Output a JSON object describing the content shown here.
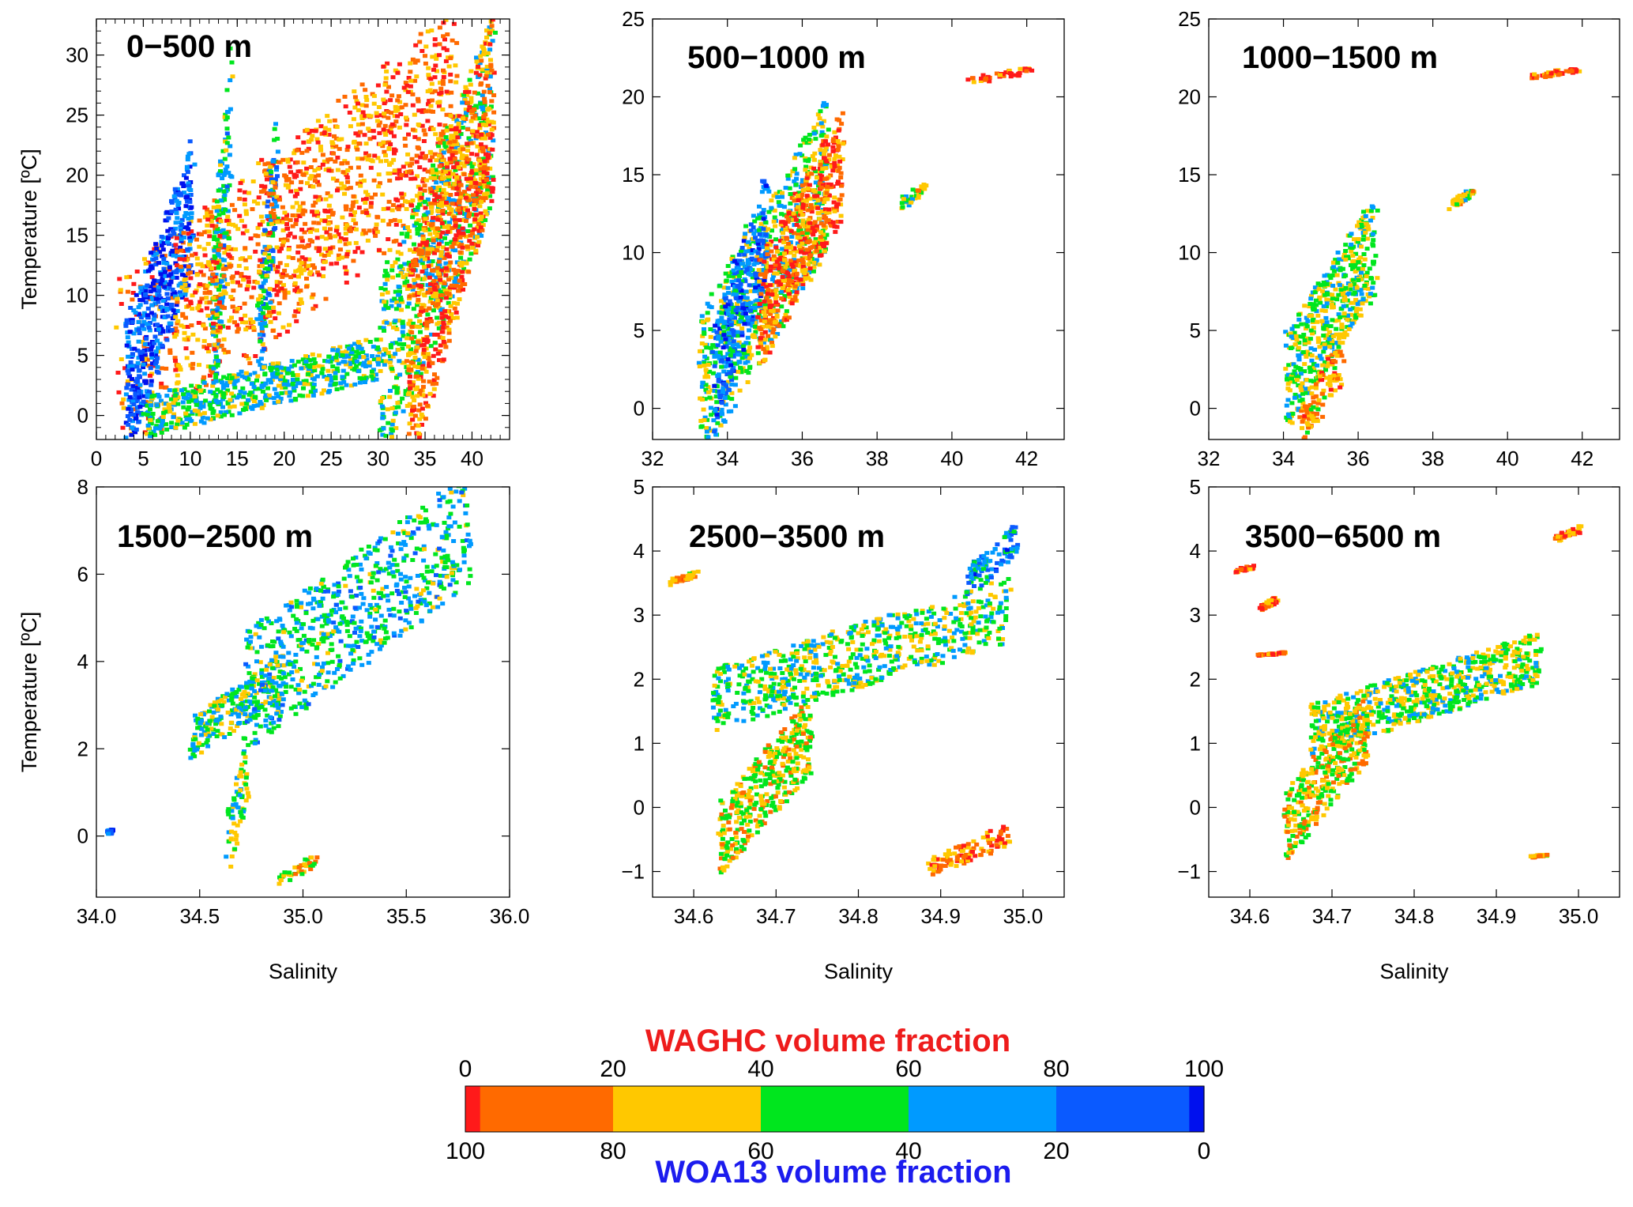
{
  "chart_data": [
    {
      "type": "scatter",
      "title": "0−500 m",
      "xlabel": "",
      "ylabel": "Temperature [ºC]",
      "xlim": [
        0,
        44
      ],
      "ylim": [
        -2,
        33
      ],
      "xticks": [
        0,
        5,
        10,
        15,
        20,
        25,
        30,
        35,
        40
      ],
      "yticks": [
        0,
        5,
        10,
        15,
        20,
        25,
        30
      ],
      "xticklabels": [
        "0",
        "5",
        "10",
        "15",
        "20",
        "25",
        "30",
        "35",
        "40"
      ],
      "yticklabels": [
        "0",
        "5",
        "10",
        "15",
        "20",
        "25",
        "30"
      ],
      "clusters": [
        {
          "x": [
            2,
            38
          ],
          "y": [
            -1,
            31
          ],
          "fraction": 10
        },
        {
          "x": [
            3,
            10
          ],
          "y": [
            -1,
            21
          ],
          "fraction": 90
        },
        {
          "x": [
            30,
            42
          ],
          "y": [
            -1,
            30
          ],
          "fraction": 50
        },
        {
          "x": [
            33,
            42
          ],
          "y": [
            -1,
            31
          ],
          "fraction": 10
        },
        {
          "x": [
            12,
            14
          ],
          "y": [
            0,
            28
          ],
          "fraction": 60
        },
        {
          "x": [
            17,
            19
          ],
          "y": [
            4,
            24
          ],
          "fraction": 70
        },
        {
          "x": [
            5,
            30
          ],
          "y": [
            -1,
            6
          ],
          "fraction": 55
        },
        {
          "x": [
            8,
            38
          ],
          "y": [
            5,
            30
          ],
          "fraction": 15
        }
      ]
    },
    {
      "type": "scatter",
      "title": "500−1000 m",
      "xlabel": "",
      "ylabel": "",
      "xlim": [
        32,
        43
      ],
      "ylim": [
        -2,
        25
      ],
      "xticks": [
        32,
        34,
        36,
        38,
        40,
        42
      ],
      "yticks": [
        0,
        5,
        10,
        15,
        20,
        25
      ],
      "xticklabels": [
        "32",
        "34",
        "36",
        "38",
        "40",
        "42"
      ],
      "yticklabels": [
        "0",
        "5",
        "10",
        "15",
        "20",
        "25"
      ],
      "clusters": [
        {
          "x": [
            33.2,
            36.6
          ],
          "y": [
            -1.5,
            18
          ],
          "fraction": 50
        },
        {
          "x": [
            33.6,
            35.0
          ],
          "y": [
            0,
            14
          ],
          "fraction": 80
        },
        {
          "x": [
            34.8,
            37.0
          ],
          "y": [
            4,
            18
          ],
          "fraction": 10
        },
        {
          "x": [
            38.6,
            39.2
          ],
          "y": [
            13,
            14.5
          ],
          "fraction": 40
        },
        {
          "x": [
            40.4,
            42.2
          ],
          "y": [
            21,
            22
          ],
          "fraction": 5
        }
      ]
    },
    {
      "type": "scatter",
      "title": "1000−1500 m",
      "xlabel": "",
      "ylabel": "",
      "xlim": [
        32,
        43
      ],
      "ylim": [
        -2,
        25
      ],
      "xticks": [
        32,
        34,
        36,
        38,
        40,
        42
      ],
      "yticks": [
        0,
        5,
        10,
        15,
        20,
        25
      ],
      "xticklabels": [
        "32",
        "34",
        "36",
        "38",
        "40",
        "42"
      ],
      "yticklabels": [
        "0",
        "5",
        "10",
        "15",
        "20",
        "25"
      ],
      "clusters": [
        {
          "x": [
            34.0,
            36.4
          ],
          "y": [
            0,
            12.5
          ],
          "fraction": 45
        },
        {
          "x": [
            34.4,
            35.5
          ],
          "y": [
            -1.8,
            4
          ],
          "fraction": 20
        },
        {
          "x": [
            38.4,
            39.0
          ],
          "y": [
            13,
            14.2
          ],
          "fraction": 40
        },
        {
          "x": [
            40.6,
            41.8
          ],
          "y": [
            21.3,
            22
          ],
          "fraction": 5
        }
      ]
    },
    {
      "type": "scatter",
      "title": "1500−2500 m",
      "xlabel": "Salinity",
      "ylabel": "Temperature [ºC]",
      "xlim": [
        34.0,
        36.0
      ],
      "ylim": [
        -1.4,
        8
      ],
      "xticks": [
        34.0,
        34.5,
        35.0,
        35.5,
        36.0
      ],
      "yticks": [
        0,
        2,
        4,
        6,
        8
      ],
      "xticklabels": [
        "34.0",
        "34.5",
        "35.0",
        "35.5",
        "36.0"
      ],
      "yticklabels": [
        "0",
        "2",
        "4",
        "6",
        "8"
      ],
      "clusters": [
        {
          "x": [
            34.45,
            34.9
          ],
          "y": [
            2.0,
            4.0
          ],
          "fraction": 55
        },
        {
          "x": [
            34.7,
            35.8
          ],
          "y": [
            2.5,
            7.9
          ],
          "fraction": 60
        },
        {
          "x": [
            34.62,
            34.72
          ],
          "y": [
            -0.6,
            2.0
          ],
          "fraction": 45
        },
        {
          "x": [
            34.88,
            35.05
          ],
          "y": [
            -1.0,
            -0.4
          ],
          "fraction": 30
        },
        {
          "x": [
            34.05,
            34.06
          ],
          "y": [
            0.1,
            0.2
          ],
          "fraction": 90
        }
      ]
    },
    {
      "type": "scatter",
      "title": "2500−3500 m",
      "xlabel": "Salinity",
      "ylabel": "",
      "xlim": [
        34.55,
        35.05
      ],
      "ylim": [
        -1.4,
        5
      ],
      "xticks": [
        34.6,
        34.7,
        34.8,
        34.9,
        35.0
      ],
      "yticks": [
        -1,
        0,
        1,
        2,
        3,
        4,
        5
      ],
      "xticklabels": [
        "34.6",
        "34.7",
        "34.8",
        "34.9",
        "35.0"
      ],
      "yticklabels": [
        "−1",
        "0",
        "1",
        "2",
        "3",
        "4",
        "5"
      ],
      "clusters": [
        {
          "x": [
            34.62,
            34.98
          ],
          "y": [
            1.4,
            3.4
          ],
          "fraction": 50
        },
        {
          "x": [
            34.63,
            34.74
          ],
          "y": [
            -0.8,
            1.5
          ],
          "fraction": 35
        },
        {
          "x": [
            34.93,
            34.99
          ],
          "y": [
            3.4,
            4.4
          ],
          "fraction": 75
        },
        {
          "x": [
            34.88,
            34.98
          ],
          "y": [
            -1.0,
            -0.3
          ],
          "fraction": 15
        },
        {
          "x": [
            34.57,
            34.6
          ],
          "y": [
            3.5,
            3.7
          ],
          "fraction": 20
        }
      ]
    },
    {
      "type": "scatter",
      "title": "3500−6500 m",
      "xlabel": "Salinity",
      "ylabel": "",
      "xlim": [
        34.55,
        35.05
      ],
      "ylim": [
        -1.4,
        5
      ],
      "xticks": [
        34.6,
        34.7,
        34.8,
        34.9,
        35.0
      ],
      "yticks": [
        -1,
        0,
        1,
        2,
        3,
        4,
        5
      ],
      "xticklabels": [
        "34.6",
        "34.7",
        "34.8",
        "34.9",
        "35.0"
      ],
      "yticklabels": [
        "−1",
        "0",
        "1",
        "2",
        "3",
        "4",
        "5"
      ],
      "clusters": [
        {
          "x": [
            34.67,
            34.95
          ],
          "y": [
            1.0,
            2.6
          ],
          "fraction": 45
        },
        {
          "x": [
            34.64,
            34.74
          ],
          "y": [
            -0.6,
            1.6
          ],
          "fraction": 30
        },
        {
          "x": [
            34.97,
            35.0
          ],
          "y": [
            4.2,
            4.4
          ],
          "fraction": 15
        },
        {
          "x": [
            34.58,
            34.6
          ],
          "y": [
            3.7,
            3.8
          ],
          "fraction": 5
        },
        {
          "x": [
            34.61,
            34.63
          ],
          "y": [
            3.1,
            3.3
          ],
          "fraction": 5
        },
        {
          "x": [
            34.61,
            34.64
          ],
          "y": [
            2.4,
            2.45
          ],
          "fraction": 5
        },
        {
          "x": [
            34.94,
            34.96
          ],
          "y": [
            -0.75,
            -0.7
          ],
          "fraction": 20
        }
      ]
    }
  ],
  "colorbar": {
    "top_title": "WAGHC volume fraction",
    "bottom_title": "WOA13 volume fraction",
    "top_ticks": [
      "0",
      "20",
      "40",
      "60",
      "80",
      "100"
    ],
    "bottom_ticks": [
      "100",
      "80",
      "60",
      "40",
      "20",
      "0"
    ],
    "top_title_color": "#ee1c1c",
    "bottom_title_color": "#1c1cee",
    "segments": [
      {
        "from": 0,
        "to": 2,
        "color": "#ff1a1a"
      },
      {
        "from": 2,
        "to": 20,
        "color": "#ff6a00"
      },
      {
        "from": 20,
        "to": 40,
        "color": "#ffc800"
      },
      {
        "from": 40,
        "to": 60,
        "color": "#00e61e"
      },
      {
        "from": 60,
        "to": 80,
        "color": "#009aff"
      },
      {
        "from": 80,
        "to": 98,
        "color": "#0a5aff"
      },
      {
        "from": 98,
        "to": 100,
        "color": "#0010ee"
      }
    ]
  }
}
